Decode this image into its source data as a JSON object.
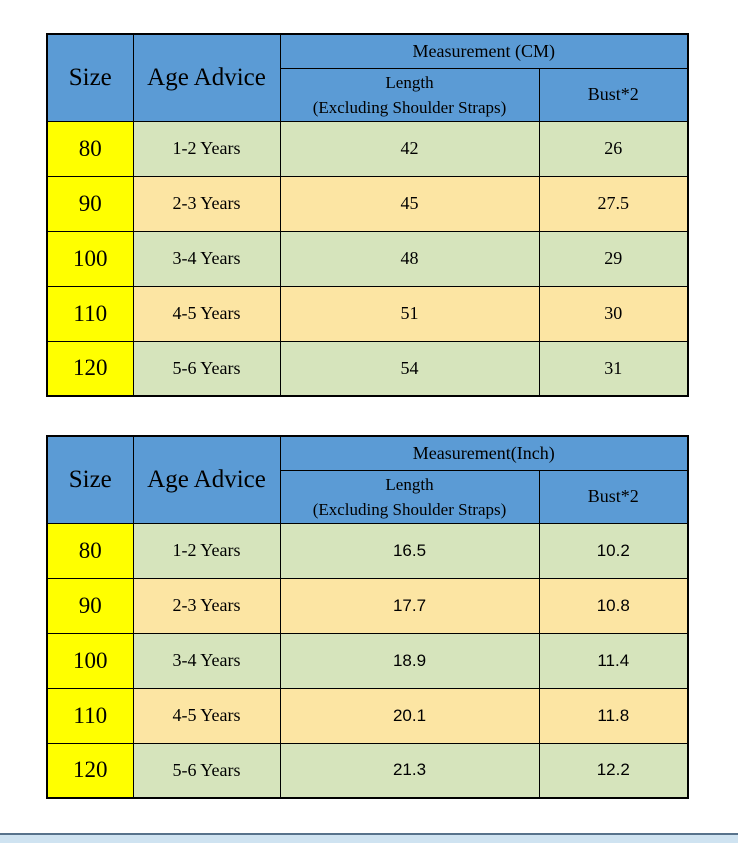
{
  "colors": {
    "header_blue": "#5b9bd5",
    "size_column_yellow": "#ffff00",
    "row_green": "#d6e4bc",
    "row_tan": "#fce5a3",
    "border": "#000000",
    "bottom_bar_fill": "#cfe3f1",
    "bottom_bar_edge": "#58738c"
  },
  "tables": [
    {
      "size_header": "Size",
      "age_header": "Age Advice",
      "unit_header": "Measurement (CM)",
      "length_header_line1": "Length",
      "length_header_line2": "(Excluding Shoulder Straps)",
      "bust_header": "Bust*2",
      "rows": [
        {
          "size": "80",
          "age": "1-2 Years",
          "length": "42",
          "bust": "26"
        },
        {
          "size": "90",
          "age": "2-3 Years",
          "length": "45",
          "bust": "27.5"
        },
        {
          "size": "100",
          "age": "3-4 Years",
          "length": "48",
          "bust": "29"
        },
        {
          "size": "110",
          "age": "4-5 Years",
          "length": "51",
          "bust": "30"
        },
        {
          "size": "120",
          "age": "5-6 Years",
          "length": "54",
          "bust": "31"
        }
      ]
    },
    {
      "size_header": "Size",
      "age_header": "Age Advice",
      "unit_header": "Measurement(Inch)",
      "length_header_line1": "Length",
      "length_header_line2": "(Excluding Shoulder Straps)",
      "bust_header": "Bust*2",
      "rows": [
        {
          "size": "80",
          "age": "1-2 Years",
          "length": "16.5",
          "bust": "10.2"
        },
        {
          "size": "90",
          "age": "2-3 Years",
          "length": "17.7",
          "bust": "10.8"
        },
        {
          "size": "100",
          "age": "3-4 Years",
          "length": "18.9",
          "bust": "11.4"
        },
        {
          "size": "110",
          "age": "4-5 Years",
          "length": "20.1",
          "bust": "11.8"
        },
        {
          "size": "120",
          "age": "5-6 Years",
          "length": "21.3",
          "bust": "12.2"
        }
      ]
    }
  ],
  "chart_data": [
    {
      "type": "table",
      "title": "Measurement (CM)",
      "columns": [
        "Size",
        "Age Advice",
        "Length (Excluding Shoulder Straps)",
        "Bust*2"
      ],
      "rows": [
        [
          "80",
          "1-2 Years",
          42,
          26
        ],
        [
          "90",
          "2-3 Years",
          45,
          27.5
        ],
        [
          "100",
          "3-4 Years",
          48,
          29
        ],
        [
          "110",
          "4-5 Years",
          51,
          30
        ],
        [
          "120",
          "5-6 Years",
          54,
          31
        ]
      ]
    },
    {
      "type": "table",
      "title": "Measurement(Inch)",
      "columns": [
        "Size",
        "Age Advice",
        "Length (Excluding Shoulder Straps)",
        "Bust*2"
      ],
      "rows": [
        [
          "80",
          "1-2 Years",
          16.5,
          10.2
        ],
        [
          "90",
          "2-3 Years",
          17.7,
          10.8
        ],
        [
          "100",
          "3-4 Years",
          18.9,
          11.4
        ],
        [
          "110",
          "4-5 Years",
          20.1,
          11.8
        ],
        [
          "120",
          "5-6 Years",
          21.3,
          12.2
        ]
      ]
    }
  ]
}
